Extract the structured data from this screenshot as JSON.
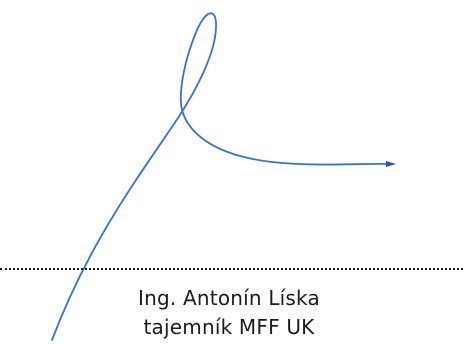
{
  "signature_block": {
    "name": "Ing. Antonín Líska",
    "title": "tajemník MFF UK",
    "ink_color": "#3a6fd8"
  }
}
